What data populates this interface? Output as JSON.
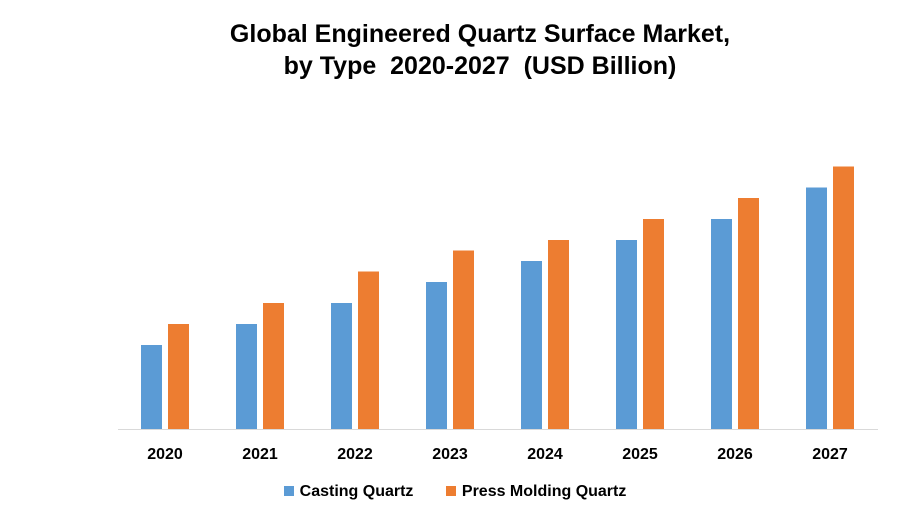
{
  "chart_data": {
    "type": "bar",
    "title": "Global Engineered Quartz Surface Market,",
    "subtitle": "by Type  2020-2027  (USD Billion)",
    "xlabel": "",
    "ylabel": "",
    "categories": [
      "2020",
      "2021",
      "2022",
      "2023",
      "2024",
      "2025",
      "2026",
      "2027"
    ],
    "series": [
      {
        "name": "Casting Quartz",
        "color": "#5B9BD5",
        "values": [
          4,
          5,
          6,
          7,
          8,
          9,
          10,
          11.5
        ]
      },
      {
        "name": "Press Molding Quartz",
        "color": "#ED7D31",
        "values": [
          5,
          6,
          7.5,
          8.5,
          9,
          10,
          11,
          12.5
        ]
      }
    ],
    "ylim": [
      0,
      14
    ],
    "grid": false,
    "legend": "bottom"
  }
}
